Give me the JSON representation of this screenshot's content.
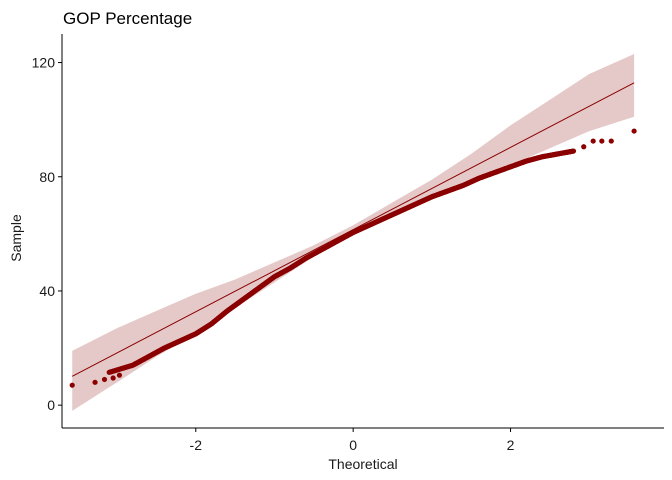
{
  "chart_data": {
    "type": "scatter",
    "subtype": "qq-plot",
    "title": "GOP Percentage",
    "xlabel": "Theoretical",
    "ylabel": "Sample",
    "xlim": [
      -3.7,
      3.95
    ],
    "ylim": [
      -8,
      130
    ],
    "x_ticks": [
      -2,
      0,
      2
    ],
    "x_tick_labels": [
      "-2",
      "0",
      "2"
    ],
    "y_ticks": [
      0,
      40,
      80,
      120
    ],
    "y_tick_labels": [
      "0",
      "40",
      "80",
      "120"
    ],
    "grid": false,
    "legend": "none",
    "reference_line": {
      "slope": 14.4,
      "intercept": 61.5,
      "x_range": [
        -3.57,
        3.57
      ],
      "confidence_band": [
        {
          "x": -3.57,
          "lower": -2,
          "upper": 19
        },
        {
          "x": -3.0,
          "lower": 8,
          "upper": 27
        },
        {
          "x": -2.5,
          "lower": 17,
          "upper": 33
        },
        {
          "x": -2.0,
          "lower": 25,
          "upper": 39
        },
        {
          "x": -1.5,
          "lower": 34,
          "upper": 44
        },
        {
          "x": -1.0,
          "lower": 43,
          "upper": 50
        },
        {
          "x": -0.5,
          "lower": 52,
          "upper": 56
        },
        {
          "x": 0.0,
          "lower": 59.5,
          "upper": 63
        },
        {
          "x": 0.5,
          "lower": 67,
          "upper": 71
        },
        {
          "x": 1.0,
          "lower": 73,
          "upper": 79
        },
        {
          "x": 1.5,
          "lower": 79,
          "upper": 88
        },
        {
          "x": 2.0,
          "lower": 84,
          "upper": 98
        },
        {
          "x": 2.5,
          "lower": 90,
          "upper": 107
        },
        {
          "x": 3.0,
          "lower": 96,
          "upper": 116
        },
        {
          "x": 3.57,
          "lower": 101,
          "upper": 123
        }
      ]
    },
    "sample_curve": [
      {
        "x": -3.1,
        "y": 11.5
      },
      {
        "x": -2.8,
        "y": 14
      },
      {
        "x": -2.6,
        "y": 17
      },
      {
        "x": -2.4,
        "y": 20
      },
      {
        "x": -2.2,
        "y": 22.5
      },
      {
        "x": -2.0,
        "y": 25
      },
      {
        "x": -1.8,
        "y": 28.5
      },
      {
        "x": -1.6,
        "y": 33
      },
      {
        "x": -1.4,
        "y": 37
      },
      {
        "x": -1.2,
        "y": 41
      },
      {
        "x": -1.0,
        "y": 45
      },
      {
        "x": -0.8,
        "y": 48
      },
      {
        "x": -0.6,
        "y": 51.5
      },
      {
        "x": -0.4,
        "y": 54.5
      },
      {
        "x": -0.2,
        "y": 57.5
      },
      {
        "x": 0.0,
        "y": 60.5
      },
      {
        "x": 0.2,
        "y": 63
      },
      {
        "x": 0.4,
        "y": 65.5
      },
      {
        "x": 0.6,
        "y": 68
      },
      {
        "x": 0.8,
        "y": 70.5
      },
      {
        "x": 1.0,
        "y": 73
      },
      {
        "x": 1.2,
        "y": 75
      },
      {
        "x": 1.4,
        "y": 77
      },
      {
        "x": 1.6,
        "y": 79.5
      },
      {
        "x": 1.8,
        "y": 81.5
      },
      {
        "x": 2.0,
        "y": 83.5
      },
      {
        "x": 2.2,
        "y": 85.5
      },
      {
        "x": 2.4,
        "y": 87
      },
      {
        "x": 2.6,
        "y": 88
      },
      {
        "x": 2.8,
        "y": 89
      }
    ],
    "outliers": [
      {
        "x": -3.57,
        "y": 7
      },
      {
        "x": -3.28,
        "y": 8
      },
      {
        "x": -3.16,
        "y": 9
      },
      {
        "x": -3.05,
        "y": 9.5
      },
      {
        "x": -2.97,
        "y": 10.5
      },
      {
        "x": 2.93,
        "y": 90.5
      },
      {
        "x": 3.05,
        "y": 92.5
      },
      {
        "x": 3.16,
        "y": 92.5
      },
      {
        "x": 3.28,
        "y": 92.5
      },
      {
        "x": 3.57,
        "y": 96
      }
    ],
    "colors": {
      "points": "#8b0000",
      "line": "#8b0000",
      "band": "#e5c9c9"
    }
  }
}
